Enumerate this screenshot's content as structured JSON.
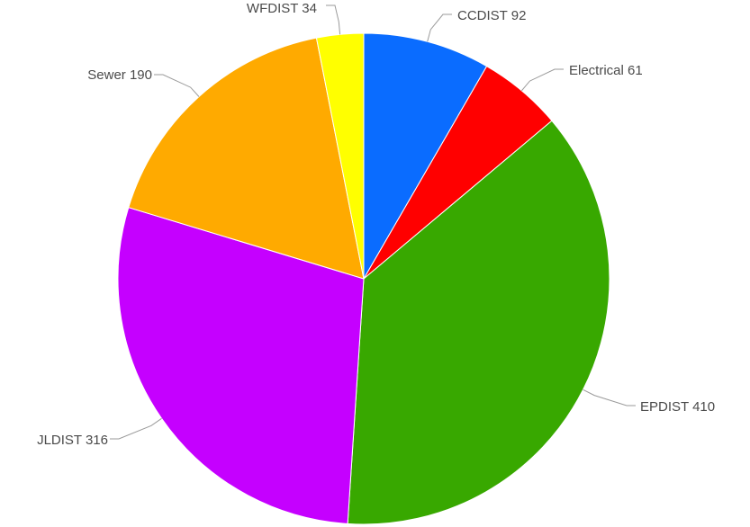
{
  "chart_data": {
    "type": "pie",
    "categories": [
      "CCDIST",
      "Electrical",
      "EPDIST",
      "JLDIST",
      "Sewer",
      "WFDIST"
    ],
    "values": [
      92,
      61,
      410,
      316,
      190,
      34
    ],
    "labels": [
      "CCDIST 92",
      "Electrical 61",
      "EPDIST 410",
      "JLDIST 316",
      "Sewer 190",
      "WFDIST 34"
    ],
    "colors": [
      "#0a6cff",
      "#ff0000",
      "#38a800",
      "#c500ff",
      "#ffaa00",
      "#ffff00"
    ],
    "start_angle_deg": 0,
    "direction": "clockwise",
    "legend": "none"
  }
}
